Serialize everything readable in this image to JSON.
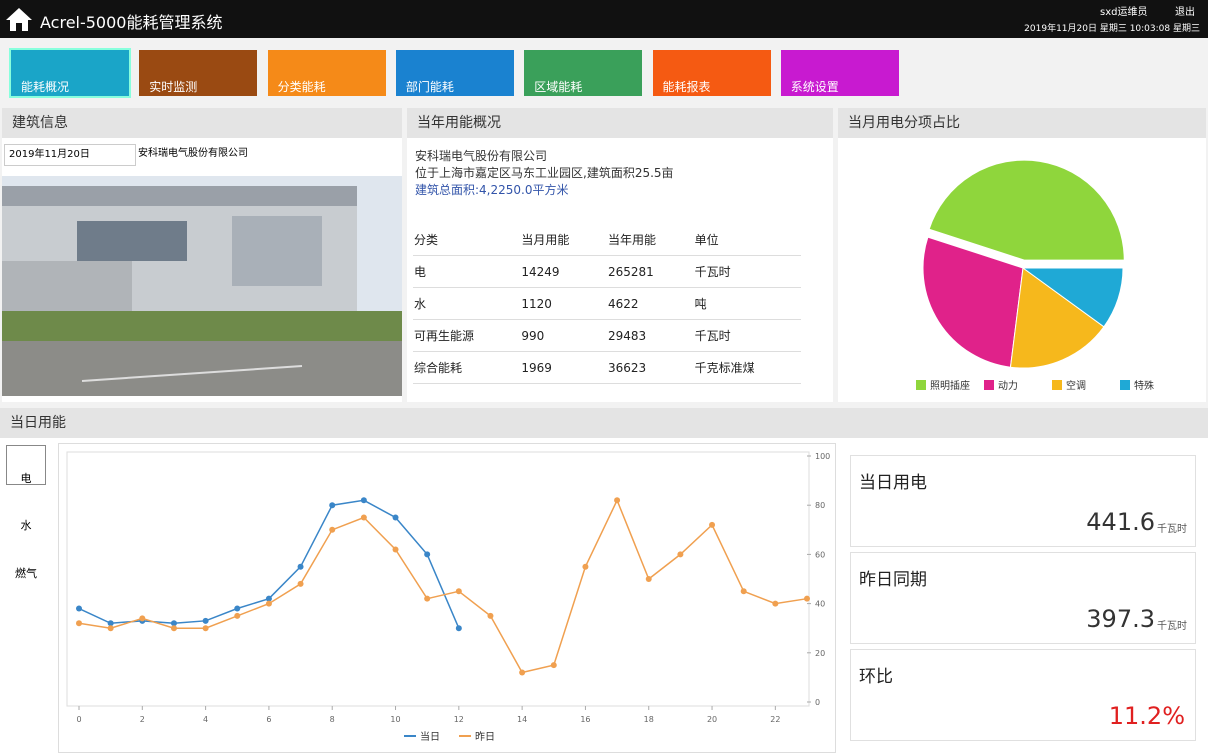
{
  "header": {
    "title": "Acrel-5000能耗管理系统",
    "user": "sxd运维员",
    "logout": "退出",
    "datetime": "2019年11月20日 星期三 10:03:08 星期三"
  },
  "nav": [
    "能耗概况",
    "实时监测",
    "分类能耗",
    "部门能耗",
    "区域能耗",
    "能耗报表",
    "系统设置"
  ],
  "building": {
    "title": "建筑信息",
    "date": "2019年11月20日",
    "company": "安科瑞电气股份有限公司"
  },
  "overview": {
    "title": "当年用能概况",
    "lines": [
      "安科瑞电气股份有限公司",
      "位于上海市嘉定区马东工业园区,建筑面积25.5亩",
      "建筑总面积:4,2250.0平方米"
    ],
    "table": {
      "headers": [
        "分类",
        "当月用能",
        "当年用能",
        "单位"
      ],
      "rows": [
        [
          "电",
          "14249",
          "265281",
          "千瓦时"
        ],
        [
          "水",
          "1120",
          "4622",
          "吨"
        ],
        [
          "可再生能源",
          "990",
          "29483",
          "千瓦时"
        ],
        [
          "综合能耗",
          "1969",
          "36623",
          "千克标准煤"
        ]
      ]
    }
  },
  "pie_chart": {
    "type": "pie",
    "title": "当月用电分项占比",
    "categories": [
      "照明插座",
      "动力",
      "空调",
      "特殊"
    ],
    "values": [
      45,
      28,
      17,
      10
    ],
    "colors": [
      "#8fd63c",
      "#e0228a",
      "#f6b81c",
      "#1fa9d6"
    ]
  },
  "daily": {
    "title": "当日用能",
    "tabs": [
      "电",
      "水",
      "燃气"
    ],
    "chart": {
      "type": "line",
      "x": [
        0,
        1,
        2,
        3,
        4,
        5,
        6,
        7,
        8,
        9,
        10,
        11,
        12,
        13,
        14,
        15,
        16,
        17,
        18,
        19,
        20,
        21,
        22,
        23
      ],
      "series": [
        {
          "name": "当日",
          "color": "#3a86c8",
          "values": [
            38,
            32,
            33,
            32,
            33,
            38,
            42,
            55,
            80,
            82,
            75,
            60,
            30,
            null,
            null,
            null,
            null,
            null,
            null,
            null,
            null,
            null,
            null,
            null
          ]
        },
        {
          "name": "昨日",
          "color": "#f0a050",
          "values": [
            32,
            30,
            34,
            30,
            30,
            35,
            40,
            48,
            70,
            75,
            62,
            42,
            45,
            35,
            12,
            15,
            55,
            82,
            50,
            60,
            72,
            45,
            40,
            42
          ]
        }
      ],
      "xlim": [
        0,
        23
      ],
      "ylim": [
        0,
        100
      ],
      "xticks": [
        0,
        2,
        4,
        6,
        8,
        10,
        12,
        14,
        16,
        18,
        20,
        22
      ],
      "yticks": [
        0,
        20,
        40,
        60,
        80,
        100
      ]
    },
    "cards": [
      {
        "label": "当日用电",
        "value": "441.6",
        "unit": "千瓦时"
      },
      {
        "label": "昨日同期",
        "value": "397.3",
        "unit": "千瓦时"
      },
      {
        "label": "环比",
        "value": "11.2%"
      }
    ]
  }
}
